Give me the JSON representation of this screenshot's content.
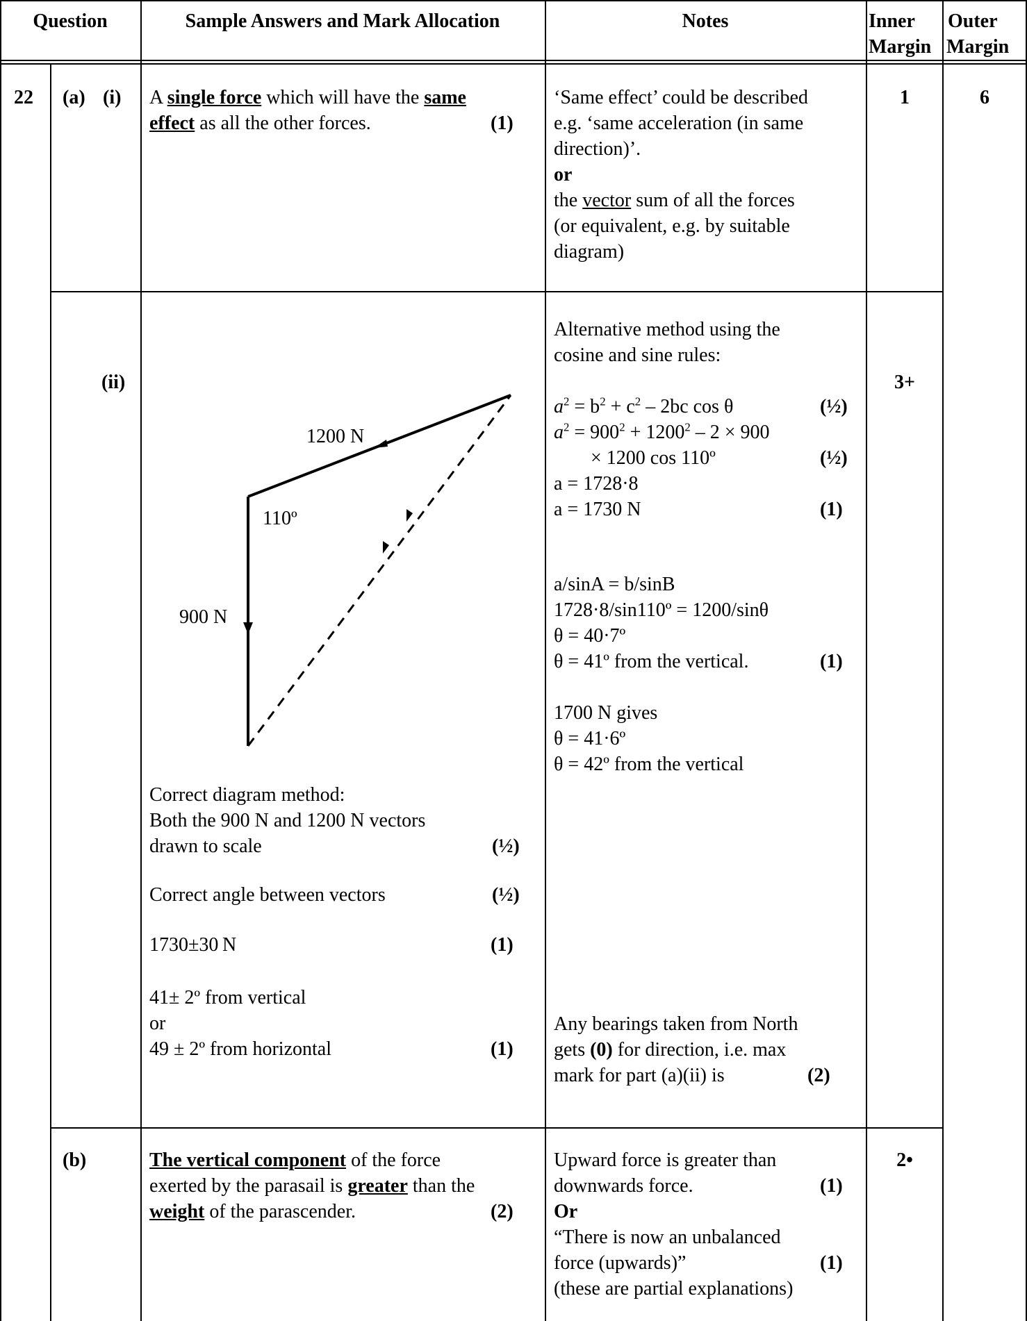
{
  "header": {
    "question": "Question",
    "answers": "Sample Answers and Mark Allocation",
    "notes": "Notes",
    "inner1": "Inner",
    "inner2": "Margin",
    "outer1": "Outer",
    "outer2": "Margin"
  },
  "q": {
    "num": "22",
    "a": "(a)",
    "i": "(i)",
    "ii": "(ii)",
    "b": "(b)"
  },
  "ai": {
    "ans_pre": "A ",
    "ans_k1": "single force",
    "ans_mid1": " which will have the ",
    "ans_k2": "same",
    "ans_k3": "effect",
    "ans_rest": " as all the other forces.",
    "ans_mark": "(1)",
    "notes": [
      "‘Same effect’ could be described",
      "e.g. ‘same acceleration (in same",
      "direction)’."
    ],
    "notes_or": "or",
    "notes_vec_pre": "the ",
    "notes_vec": "vector",
    "notes_vec_post": " sum of all the forces",
    "notes_tail": [
      "(or equivalent, e.g. by suitable",
      "diagram)"
    ],
    "inner": "1",
    "outer": "6"
  },
  "aii": {
    "diagram": {
      "label_1200": "1200 N",
      "label_110": "110º",
      "label_900": "900 N"
    },
    "method_lines": [
      "Correct diagram method:",
      "Both the 900 N and 1200 N vectors"
    ],
    "scale_line": "drawn to scale",
    "scale_mark": "(½)",
    "angle_line": "Correct angle between vectors",
    "angle_mark": "(½)",
    "result_line": "1730±30 N",
    "result_mark": "(1)",
    "dir1": "41± 2º from vertical",
    "dir_or": "or",
    "dir2": "49 ± 2º from horizontal",
    "dir_mark": "(1)",
    "alt_lines": [
      "Alternative method using the",
      "cosine and sine rules:"
    ],
    "cos_rule_a": "a",
    "cos_rule_b": " = b",
    "cos_rule_c": " + c",
    "cos_rule_d": " – 2bc cos θ",
    "half": "(½)",
    "sub1": "a",
    "sub2": " = 900",
    "sub3": " + 1200",
    "sub4": " – 2 × 900",
    "sub5": "× 1200 cos 110º",
    "a_val": "a = 1728·8",
    "a_final": "a = 1730 N",
    "a_mark": "(1)",
    "sine_rule": "a/sinA = b/sinB",
    "sine_sub": "1728·8/sin110º = 1200/sinθ",
    "theta1": "θ = 40·7º",
    "theta2": "θ = 41º from the vertical.",
    "theta_mark": "(1)",
    "n1700": "1700 N gives",
    "theta3": "θ = 41·6º",
    "theta4": "θ = 42º from the vertical",
    "bear1": "Any bearings taken from North",
    "bear2_pre": "gets ",
    "bear2_b": "(0)",
    "bear2_post": " for direction, i.e. max",
    "bear3": "mark for part (a)(ii) is",
    "bear_mark": "(2)",
    "inner": "3+"
  },
  "b": {
    "ans_k1": "The vertical component",
    "ans_1": " of the force",
    "ans_2": "exerted by the parasail is ",
    "ans_k2": "greater",
    "ans_3": " than the",
    "ans_k3": "weight",
    "ans_4": " of the parascender.",
    "ans_mark": "(2)",
    "n1": "Upward force is greater than",
    "n2": "downwards force.",
    "n2_mark": "(1)",
    "n_or": "Or",
    "n3": "“There is now an unbalanced",
    "n4": "force (upwards)”",
    "n4_mark": "(1)",
    "n5": "(these are partial explanations)",
    "inner": "2•"
  }
}
